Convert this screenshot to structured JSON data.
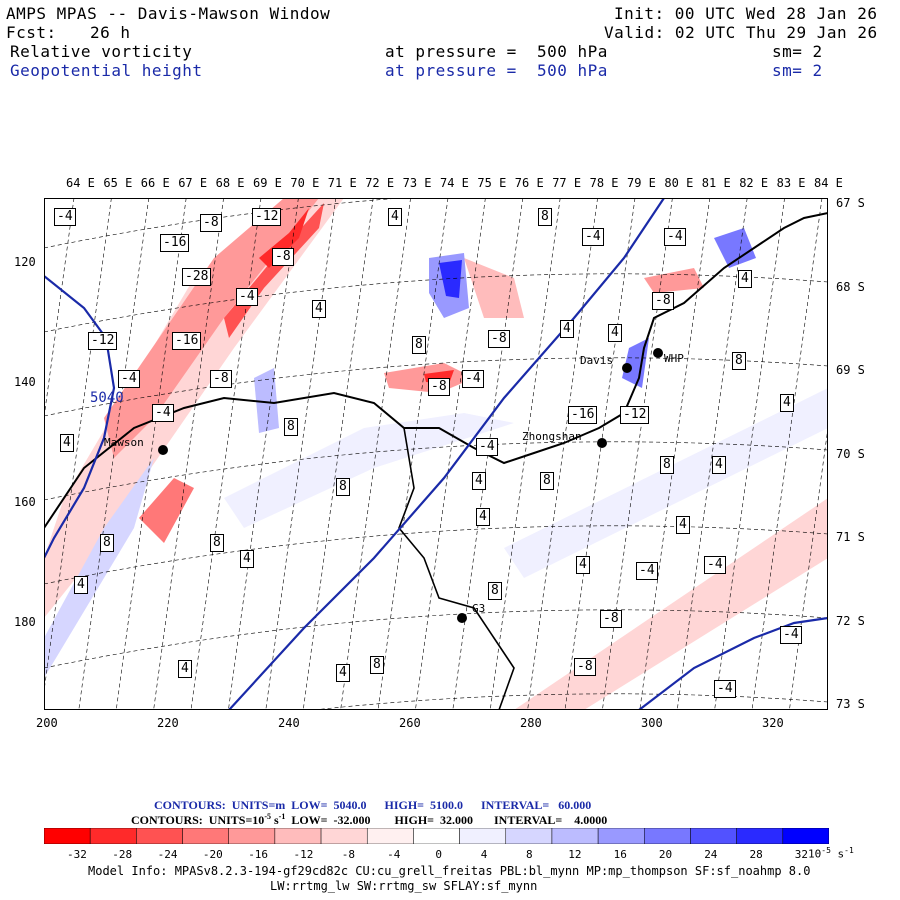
{
  "header": {
    "title": "AMPS MPAS -- Davis-Mawson Window",
    "init": "Init: 00 UTC Wed 28 Jan 26",
    "fcst_label": "Fcst:",
    "fcst_value": "26 h",
    "valid": "Valid: 02 UTC Thu 29 Jan 26",
    "field1": {
      "name": "Relative vorticity",
      "level": "at pressure =  500 hPa",
      "smooth": "sm= 2"
    },
    "field2": {
      "name": "Geopotential height",
      "level": "at pressure =  500 hPa",
      "smooth": "sm= 2"
    }
  },
  "axes": {
    "lon_labels": [
      "64 E",
      "65 E",
      "66 E",
      "67 E",
      "68 E",
      "69 E",
      "70 E",
      "71 E",
      "72 E",
      "73 E",
      "74 E",
      "75 E",
      "76 E",
      "77 E",
      "78 E",
      "79 E",
      "80 E",
      "81 E",
      "82 E",
      "83 E",
      "84 E"
    ],
    "lat_labels": [
      "67 S",
      "68 S",
      "69 S",
      "70 S",
      "71 S",
      "72 S",
      "73 S"
    ],
    "y_ticks": [
      "120",
      "140",
      "160",
      "180"
    ],
    "x_ticks": [
      "200",
      "220",
      "240",
      "260",
      "280",
      "300",
      "320"
    ]
  },
  "stations": [
    "Mawson",
    "Davis",
    "WHP",
    "Zhongshan",
    "G3"
  ],
  "contour_labels": {
    "height": [
      "5040"
    ],
    "vorticity": [
      "-4",
      "-8",
      "-12",
      "-16",
      "-28",
      "-4",
      "-8",
      "-12",
      "-16",
      "-4",
      "-8",
      "-4",
      "4",
      "8",
      "4",
      "8",
      "-4",
      "4",
      "8",
      "-8",
      "-4",
      "4",
      "-4",
      "-8",
      "4",
      "-16",
      "-12",
      "-8",
      "-4",
      "4",
      "8",
      "4",
      "8",
      "4",
      "8",
      "4",
      "4",
      "8",
      "4",
      "4",
      "8",
      "4",
      "4",
      "8",
      "8",
      "4",
      "4",
      "8",
      "-4",
      "-8",
      "-8",
      "-4",
      "-4",
      "-4"
    ]
  },
  "contour_info": {
    "line1": "CONTOURS:  UNITS=m  LOW=  5040.0      HIGH=  5100.0      INTERVAL=   60.000",
    "line2_a": "CONTOURS:  UNITS=10",
    "line2_exp": "-5",
    "line2_b": " s",
    "line2_exp2": "-1",
    "line2_c": "  LOW=  -32.000        HIGH=  32.000       INTERVAL=    4.0000"
  },
  "colorbar": {
    "labels": [
      "-32",
      "-28",
      "-24",
      "-20",
      "-16",
      "-12",
      "-8",
      "-4",
      "0",
      "4",
      "8",
      "12",
      "16",
      "20",
      "24",
      "28",
      "32"
    ],
    "units": "10",
    "units_exp": "-5",
    "units_s": " s",
    "units_exp2": "-1",
    "colors": [
      "#ff0000",
      "#ff2a2a",
      "#ff5252",
      "#ff7878",
      "#ff9999",
      "#ffbcbc",
      "#ffd6d6",
      "#fff0f0",
      "#ffffff",
      "#f0f0ff",
      "#d6d6ff",
      "#bcbcff",
      "#9999ff",
      "#7878ff",
      "#5252ff",
      "#2a2aff",
      "#0000ff"
    ]
  },
  "model_info": {
    "line1": "Model Info: MPASv8.2.3-194-gf29cd82c CU:cu_grell_freitas PBL:bl_mynn MP:mp_thompson SF:sf_noahmp 8.0",
    "line2": "LW:rrtmg_lw SW:rrtmg_sw SFLAY:sf_mynn"
  }
}
